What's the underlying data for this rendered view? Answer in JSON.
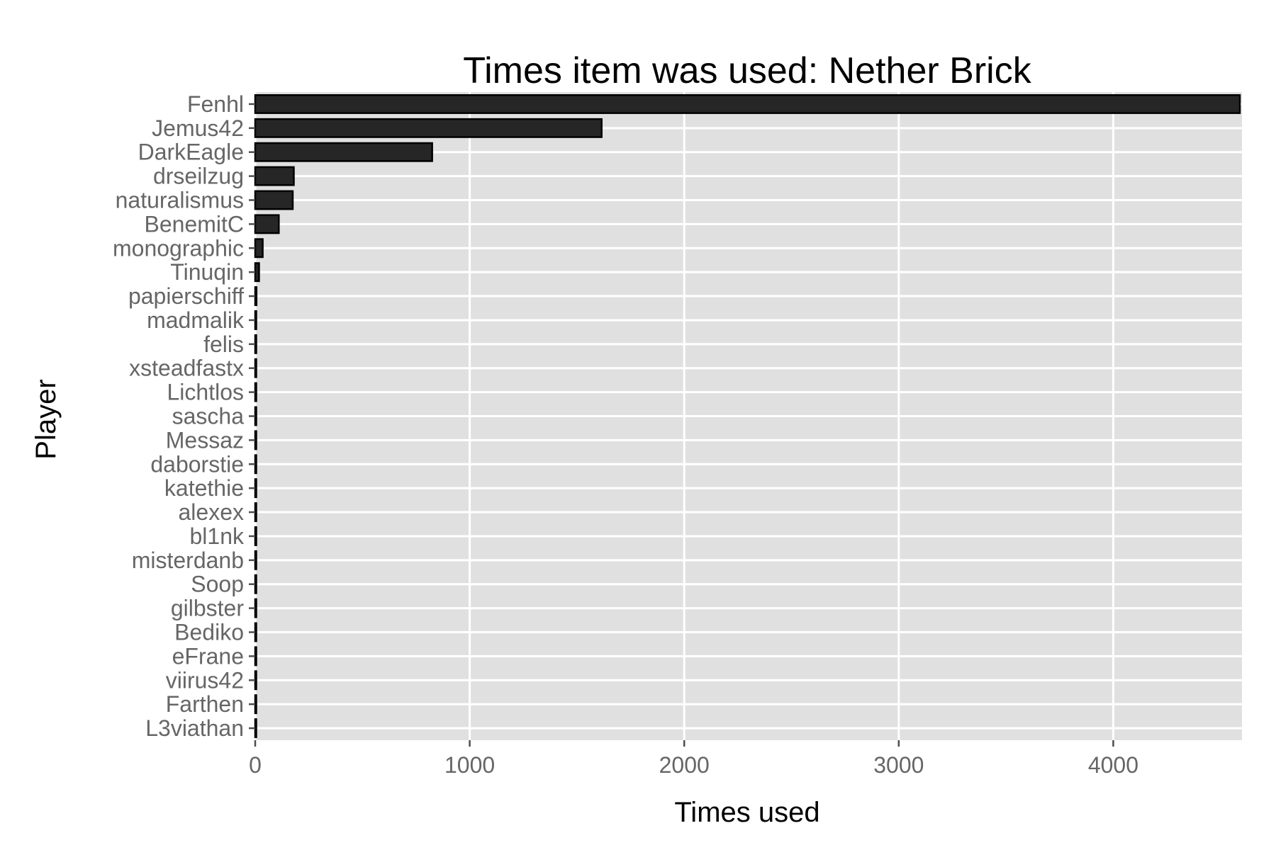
{
  "chart_data": {
    "type": "bar",
    "orientation": "horizontal",
    "title": "Times item was used: Nether Brick",
    "xlabel": "Times used",
    "ylabel": "Player",
    "categories": [
      "Fenhl",
      "Jemus42",
      "DarkEagle",
      "drseilzug",
      "naturalismus",
      "BenemitC",
      "monographic",
      "Tinuqin",
      "papierschiff",
      "madmalik",
      "felis",
      "xsteadfastx",
      "Lichtlos",
      "sascha",
      "Messaz",
      "daborstie",
      "katethie",
      "alexex",
      "bl1nk",
      "misterdanb",
      "Soop",
      "gilbster",
      "Bediko",
      "eFrane",
      "viirus42",
      "Farthen",
      "L3viathan"
    ],
    "values": [
      4590,
      1615,
      825,
      180,
      175,
      110,
      35,
      18,
      6,
      4,
      4,
      3,
      3,
      3,
      3,
      2,
      2,
      2,
      2,
      2,
      2,
      2,
      2,
      2,
      2,
      2,
      1
    ],
    "xlim": [
      0,
      4600
    ],
    "xticks": [
      0,
      1000,
      2000,
      3000,
      4000
    ],
    "xtick_labels": [
      "0",
      "1000",
      "2000",
      "3000",
      "4000"
    ],
    "grid": true,
    "colors": {
      "bar_fill": "#262626",
      "panel_bg": "#e0e0e0",
      "grid": "#ffffff"
    }
  }
}
